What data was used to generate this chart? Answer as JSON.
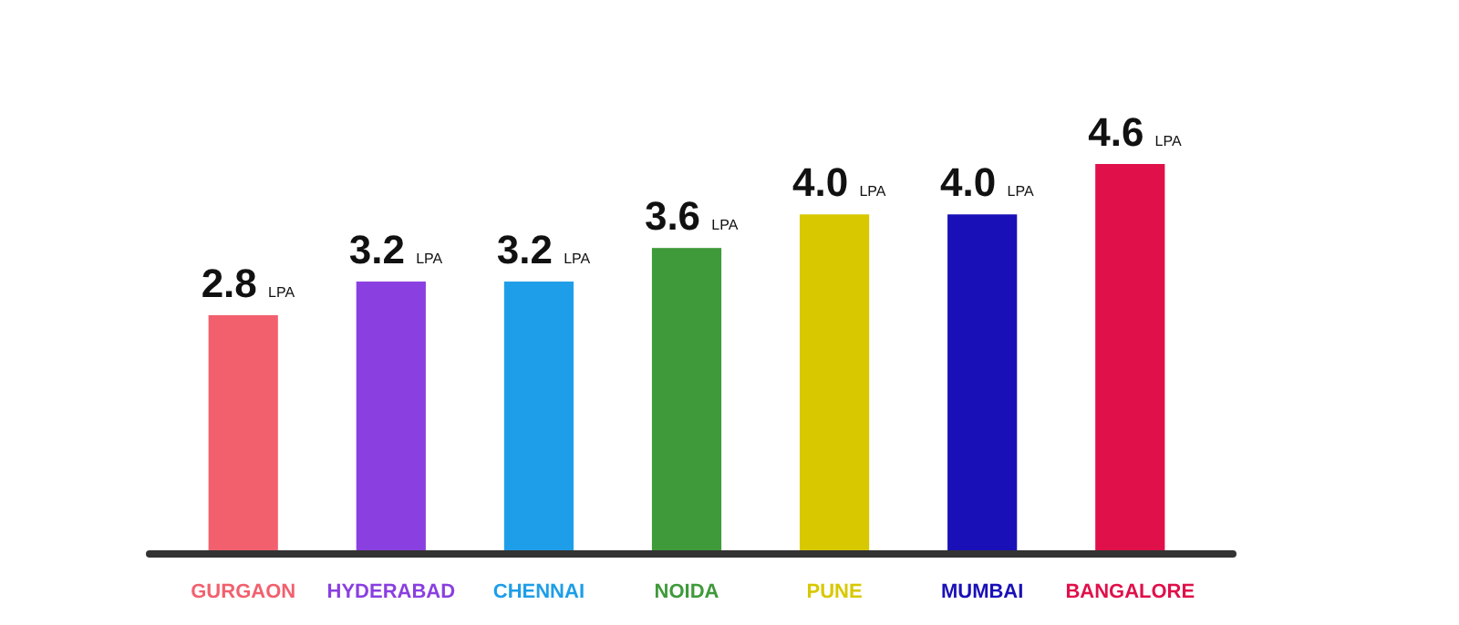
{
  "chart_data": {
    "type": "bar",
    "categories": [
      "GURGAON",
      "HYDERABAD",
      "CHENNAI",
      "NOIDA",
      "PUNE",
      "MUMBAI",
      "BANGALORE"
    ],
    "values": [
      2.8,
      3.2,
      3.2,
      3.6,
      4.0,
      4.0,
      4.6
    ],
    "colors": [
      "#f2606e",
      "#8a3fe0",
      "#1e9ee8",
      "#3f9a3a",
      "#d8c800",
      "#1a10b8",
      "#e0104a"
    ],
    "value_labels": [
      "2.8 LPA",
      "3.2 LPA",
      "3.2 LPA",
      "3.6 LPA",
      "4.0 LPA",
      "4.0 LPA",
      "4.6 LPA"
    ]
  }
}
